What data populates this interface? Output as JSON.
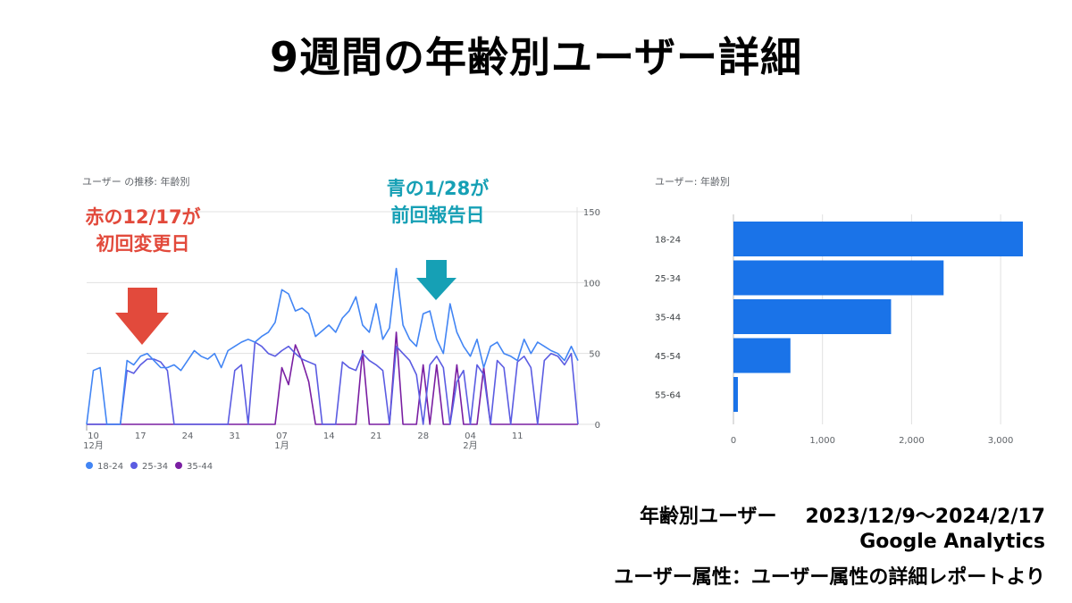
{
  "page_title": "9週間の年齢別ユーザー詳細",
  "annotations": {
    "red_line1": "赤の12/17が",
    "red_line2": "初回変更日",
    "teal_line1": "青の1/28が",
    "teal_line2": "前回報告日",
    "red_color": "#e24a3c",
    "teal_color": "#16a0b5"
  },
  "footer": {
    "label": "年齢別ユーザー",
    "period": "2023/12/9〜2024/2/17",
    "source": "Google Analytics",
    "report": "ユーザー属性：ユーザー属性の詳細レポートより"
  },
  "chart_data": [
    {
      "type": "line",
      "title": "ユーザー の推移: 年齢別",
      "ylim": [
        0,
        150
      ],
      "y_ticks": [
        "0",
        "50",
        "100",
        "150"
      ],
      "x_tick_labels": [
        {
          "day": 1,
          "label": "10",
          "month": "12月"
        },
        {
          "day": 8,
          "label": "17",
          "month": ""
        },
        {
          "day": 15,
          "label": "24",
          "month": ""
        },
        {
          "day": 22,
          "label": "31",
          "month": ""
        },
        {
          "day": 29,
          "label": "07",
          "month": "1月"
        },
        {
          "day": 36,
          "label": "14",
          "month": ""
        },
        {
          "day": 43,
          "label": "21",
          "month": ""
        },
        {
          "day": 50,
          "label": "28",
          "month": ""
        },
        {
          "day": 57,
          "label": "04",
          "month": "2月"
        },
        {
          "day": 64,
          "label": "11",
          "month": ""
        }
      ],
      "grid": true,
      "legend_position": "bottom-left",
      "series": [
        {
          "name": "18-24",
          "color": "#4285f4",
          "values": [
            0,
            38,
            40,
            0,
            0,
            0,
            45,
            42,
            48,
            50,
            45,
            40,
            40,
            42,
            38,
            45,
            52,
            48,
            46,
            50,
            40,
            52,
            55,
            58,
            60,
            58,
            62,
            65,
            72,
            95,
            92,
            80,
            82,
            78,
            62,
            66,
            70,
            65,
            75,
            80,
            90,
            70,
            65,
            85,
            60,
            68,
            110,
            70,
            60,
            55,
            78,
            80,
            60,
            50,
            85,
            65,
            55,
            48,
            60,
            40,
            55,
            58,
            50,
            48,
            45,
            60,
            50,
            58,
            55,
            52,
            50,
            45,
            55,
            45
          ]
        },
        {
          "name": "25-34",
          "color": "#5b5ce2",
          "values": [
            0,
            0,
            0,
            0,
            0,
            0,
            38,
            36,
            42,
            46,
            46,
            44,
            38,
            0,
            0,
            0,
            0,
            0,
            0,
            0,
            0,
            0,
            38,
            42,
            0,
            58,
            55,
            50,
            48,
            52,
            55,
            50,
            46,
            44,
            42,
            0,
            0,
            0,
            44,
            40,
            38,
            50,
            45,
            42,
            38,
            0,
            55,
            50,
            45,
            35,
            0,
            42,
            48,
            40,
            0,
            30,
            38,
            0,
            42,
            35,
            0,
            45,
            40,
            0,
            44,
            48,
            40,
            0,
            45,
            50,
            48,
            42,
            50,
            0
          ]
        },
        {
          "name": "35-44",
          "color": "#7a1fa2",
          "values": [
            0,
            0,
            0,
            0,
            0,
            0,
            0,
            0,
            0,
            0,
            0,
            0,
            0,
            0,
            0,
            0,
            0,
            0,
            0,
            0,
            0,
            0,
            0,
            0,
            0,
            0,
            0,
            0,
            0,
            40,
            28,
            56,
            45,
            30,
            0,
            0,
            0,
            0,
            0,
            0,
            0,
            52,
            0,
            0,
            0,
            0,
            65,
            0,
            0,
            0,
            42,
            0,
            42,
            0,
            0,
            42,
            0,
            0,
            0,
            40,
            0,
            0,
            0,
            0,
            0,
            0,
            0,
            0,
            0,
            0,
            0,
            0,
            0,
            0
          ]
        }
      ]
    },
    {
      "type": "bar",
      "orientation": "horizontal",
      "title": "ユーザー: 年齢別",
      "categories": [
        "18-24",
        "25-34",
        "35-44",
        "45-54",
        "55-64"
      ],
      "values": [
        3250,
        2360,
        1770,
        640,
        50
      ],
      "xlim": [
        0,
        3300
      ],
      "x_ticks": [
        0,
        1000,
        2000,
        3000
      ],
      "x_tick_labels": [
        "0",
        "1,000",
        "2,000",
        "3,000"
      ],
      "color": "#1a73e8",
      "grid": true
    }
  ]
}
